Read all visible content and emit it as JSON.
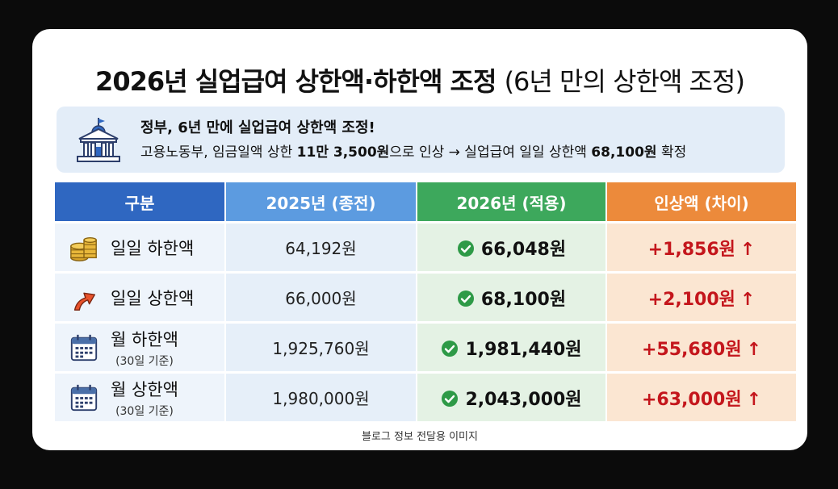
{
  "title": {
    "main": "2026년 실업급여 상한액·하한액 조정",
    "sub": "(6년 만의 상한액 조정)"
  },
  "notice": {
    "headline": "정부, 6년 만에 실업급여 상한액 조정!",
    "line_pre": "고용노동부, 임금일액 상한 ",
    "line_bold1": "11만 3,500원",
    "line_mid": "으로 인상 → 실업급여 일일 상한액 ",
    "line_bold2": "68,100원",
    "line_post": " 확정",
    "icon": "government-building-icon"
  },
  "table": {
    "headers": [
      "구분",
      "2025년 (종전)",
      "2026년 (적용)",
      "인상액 (차이)"
    ],
    "rows": [
      {
        "label": "일일 하한액",
        "note": "",
        "icon": "coin-stack-icon",
        "prev": "64,192원",
        "next": "66,048원",
        "diff": "+1,856원"
      },
      {
        "label": "일일 상한액",
        "note": "",
        "icon": "up-arrow-icon",
        "prev": "66,000원",
        "next": "68,100원",
        "diff": "+2,100원"
      },
      {
        "label": "월 하한액",
        "note": "(30일 기준)",
        "icon": "calendar-icon",
        "prev": "1,925,760원",
        "next": "1,981,440원",
        "diff": "+55,680원"
      },
      {
        "label": "월 상한액",
        "note": "(30일 기준)",
        "icon": "calendar-icon",
        "prev": "1,980,000원",
        "next": "2,043,000원",
        "diff": "+63,000원"
      }
    ],
    "diff_arrow": "↑"
  },
  "footer": "블로그 정보 전달용 이미지",
  "colors": {
    "header_col0": "#2f67c1",
    "header_col1": "#5c9be0",
    "header_col2": "#3da85c",
    "header_col3": "#ec8a3b",
    "increase_red": "#c4161c",
    "check_green": "#2e9a47"
  }
}
